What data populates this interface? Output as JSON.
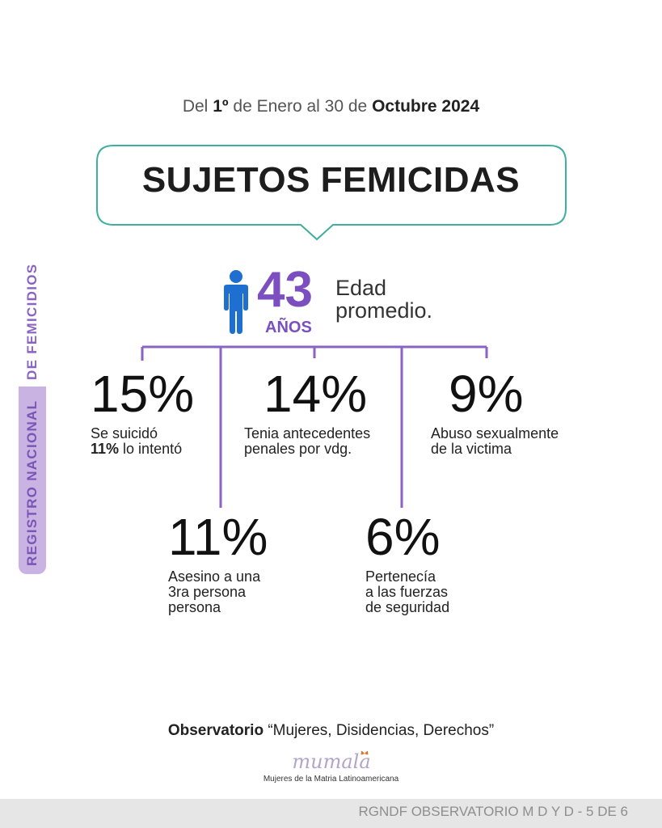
{
  "header": {
    "date_del": "Del",
    "date_day": "1º",
    "date_de1": "de Enero",
    "date_al": "al",
    "date_end": "30",
    "date_de2": "de",
    "date_month": "Octubre 2024",
    "title": "SUJETOS FEMICIDAS"
  },
  "side_label": {
    "part1": "REGISTRO NACIONAL",
    "part2": "DE FEMICIDIOS"
  },
  "age": {
    "value": "43",
    "unit": "AÑOS",
    "label_line1": "Edad",
    "label_line2": "promedio.",
    "icon": "person-icon"
  },
  "stats": [
    {
      "pct": "15%",
      "line1": "Se suicidó",
      "line2_bold": "11%",
      "line2": " lo intentó"
    },
    {
      "pct": "14%",
      "line1": "Tenia antecedentes",
      "line2": "penales por vdg."
    },
    {
      "pct": "9%",
      "line1": "Abuso sexualmente",
      "line2": "de la victima"
    },
    {
      "pct": "11%",
      "line1": "Asesino a una",
      "line2": "3ra persona",
      "line3": "persona"
    },
    {
      "pct": "6%",
      "line1": "Pertenecía",
      "line2": "a las fuerzas",
      "line3": "de seguridad"
    }
  ],
  "footer": {
    "obs_bold": "Observatorio",
    "obs_text": " “Mujeres, Disidencias, Derechos”",
    "logo": "mumala",
    "logo_sub": "Mujeres de la Matria Latinoamericana",
    "page_ref": "RGNDF OBSERVATORIO M D Y D - 5 DE 6"
  },
  "colors": {
    "accent": "#7b4fc0",
    "bubble_border": "#3fae9c",
    "icon_blue": "#1e6fd0",
    "connector": "#8a63c4"
  }
}
